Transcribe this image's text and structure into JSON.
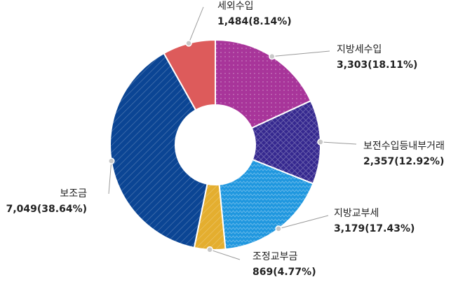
{
  "chart_data": {
    "type": "pie",
    "donut": true,
    "slices": [
      {
        "name": "지방세수입",
        "value": 3303,
        "value_label": "3,303(18.11%)",
        "color": "#a8359a",
        "pattern": "dots"
      },
      {
        "name": "보전수입등내부거래",
        "value": 2357,
        "value_label": "2,357(12.92%)",
        "color": "#35288f",
        "pattern": "crosshatch"
      },
      {
        "name": "지방교부세",
        "value": 3179,
        "value_label": "3,179(17.43%)",
        "color": "#1f97df",
        "pattern": "zigzag"
      },
      {
        "name": "조정교부금",
        "value": 869,
        "value_label": "869(4.77%)",
        "color": "#e4ae2f",
        "pattern": "diagonal"
      },
      {
        "name": "보조금",
        "value": 7049,
        "value_label": "7,049(38.64%)",
        "color": "#0b4594",
        "pattern": "diagonal"
      },
      {
        "name": "세외수입",
        "value": 1484,
        "value_label": "1,484(8.14%)",
        "color": "#dd5b5b",
        "pattern": "none"
      }
    ]
  }
}
